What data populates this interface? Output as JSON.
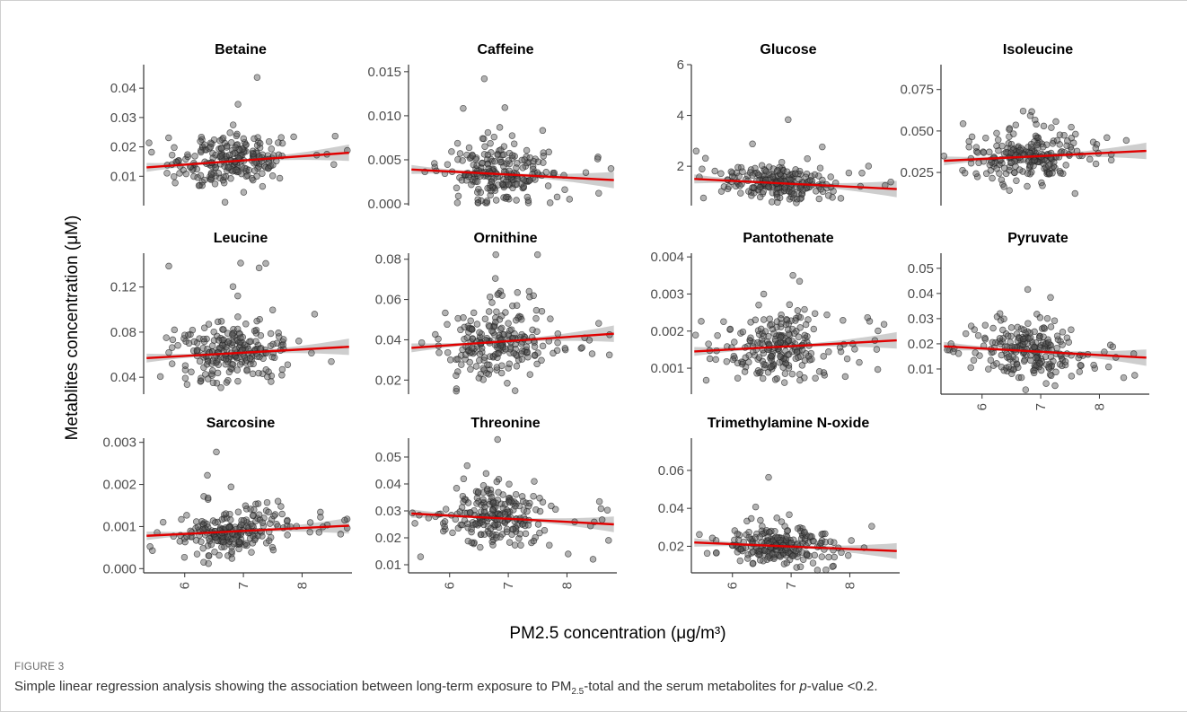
{
  "figure": {
    "label": "FIGURE 3",
    "caption_parts": {
      "before": "Simple linear regression analysis showing the association between long-term exposure to PM",
      "subscript": "2.5",
      "middle": "-total and the serum metabolites for ",
      "italic": "p",
      "after": "-value <0.2."
    }
  },
  "colors": {
    "point_fill": "#555555",
    "point_stroke": "#222222",
    "regression_line": "#e00000",
    "confidence_band": "#bdbdbd",
    "axis": "#333333"
  },
  "chart_data": {
    "type": "scatter",
    "layout": "faceted grid, 3 rows x 4 columns, shared x-axis",
    "xlabel": "PM2.5 concentration (μg/m³)",
    "ylabel": "Metablites concentration (μM)",
    "x_ticks": [
      "6",
      "7",
      "8"
    ],
    "xlim": [
      5.3,
      8.85
    ],
    "grid": false,
    "legend": "none",
    "panels": [
      {
        "title": "Betaine",
        "ylim": [
          0.0,
          0.048
        ],
        "yticks": [
          0.01,
          0.02,
          0.03,
          0.04
        ],
        "tick_labels": [
          "0.01",
          "0.02",
          "0.03",
          "0.04"
        ],
        "fit": [
          0.013,
          0.018
        ],
        "points_mean": 0.0155,
        "points_sd": 0.0055
      },
      {
        "title": "Caffeine",
        "ylim": [
          -0.0002,
          0.0158
        ],
        "yticks": [
          0.0,
          0.005,
          0.01,
          0.015
        ],
        "tick_labels": [
          "0.000",
          "0.005",
          "0.010",
          "0.015"
        ],
        "fit": [
          0.0039,
          0.0027
        ],
        "points_mean": 0.0035,
        "points_sd": 0.0022
      },
      {
        "title": "Glucose",
        "ylim": [
          0.45,
          6.0
        ],
        "yticks": [
          2,
          4,
          6
        ],
        "tick_labels": [
          "2",
          "4",
          "6"
        ],
        "fit": [
          1.5,
          1.1
        ],
        "points_mean": 1.45,
        "points_sd": 0.45
      },
      {
        "title": "Isoleucine",
        "ylim": [
          0.005,
          0.09
        ],
        "yticks": [
          0.025,
          0.05,
          0.075
        ],
        "tick_labels": [
          "0.025",
          "0.050",
          "0.075"
        ],
        "fit": [
          0.032,
          0.038
        ],
        "points_mean": 0.035,
        "points_sd": 0.01
      },
      {
        "title": "Leucine",
        "ylim": [
          0.025,
          0.15
        ],
        "yticks": [
          0.04,
          0.08,
          0.12
        ],
        "tick_labels": [
          "0.04",
          "0.08",
          "0.12"
        ],
        "fit": [
          0.057,
          0.067
        ],
        "points_mean": 0.062,
        "points_sd": 0.017
      },
      {
        "title": "Ornithine",
        "ylim": [
          0.013,
          0.083
        ],
        "yticks": [
          0.02,
          0.04,
          0.06,
          0.08
        ],
        "tick_labels": [
          "0.02",
          "0.04",
          "0.06",
          "0.08"
        ],
        "fit": [
          0.036,
          0.043
        ],
        "points_mean": 0.039,
        "points_sd": 0.011
      },
      {
        "title": "Pantothenate",
        "ylim": [
          0.0003,
          0.0041
        ],
        "yticks": [
          0.001,
          0.002,
          0.003,
          0.004
        ],
        "tick_labels": [
          "0.001",
          "0.002",
          "0.003",
          "0.004"
        ],
        "fit": [
          0.00145,
          0.00175
        ],
        "points_mean": 0.0016,
        "points_sd": 0.0006
      },
      {
        "title": "Pyruvate",
        "ylim": [
          0.0,
          0.056
        ],
        "yticks": [
          0.01,
          0.02,
          0.03,
          0.04,
          0.05
        ],
        "tick_labels": [
          "0.01",
          "0.02",
          "0.03",
          "0.04",
          "0.05"
        ],
        "fit": [
          0.019,
          0.0145
        ],
        "points_mean": 0.017,
        "points_sd": 0.007
      },
      {
        "title": "Sarcosine",
        "ylim": [
          -0.0001,
          0.0031
        ],
        "yticks": [
          0.0,
          0.001,
          0.002,
          0.003
        ],
        "tick_labels": [
          "0.000",
          "0.001",
          "0.002",
          "0.003"
        ],
        "fit": [
          0.00078,
          0.00102
        ],
        "points_mean": 0.0009,
        "points_sd": 0.00035
      },
      {
        "title": "Threonine",
        "ylim": [
          0.007,
          0.057
        ],
        "yticks": [
          0.01,
          0.02,
          0.03,
          0.04,
          0.05
        ],
        "tick_labels": [
          "0.01",
          "0.02",
          "0.03",
          "0.04",
          "0.05"
        ],
        "fit": [
          0.029,
          0.025
        ],
        "points_mean": 0.027,
        "points_sd": 0.007
      },
      {
        "title": "Trimethylamine N-oxide",
        "ylim": [
          0.006,
          0.077
        ],
        "yticks": [
          0.02,
          0.04,
          0.06
        ],
        "tick_labels": [
          "0.02",
          "0.04",
          "0.06"
        ],
        "fit": [
          0.022,
          0.0175
        ],
        "points_mean": 0.02,
        "points_sd": 0.007
      }
    ]
  }
}
